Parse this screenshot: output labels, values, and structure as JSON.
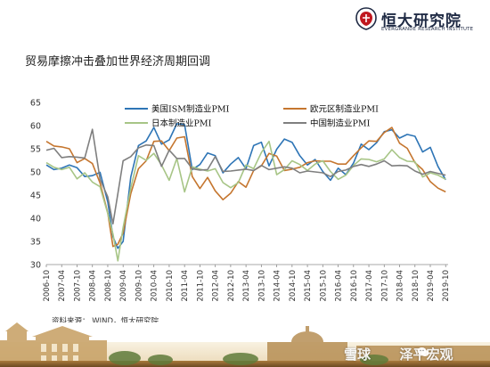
{
  "brand": {
    "cn_name": "恒大研究院",
    "en_name": "EVERGRANDE RESEARCH INSTITUTE",
    "color": "#c0181f"
  },
  "page": {
    "title": "贸易摩擦冲击叠加世界经济周期回调",
    "source": "资料来源： WIND，恒大研究院"
  },
  "watermark": {
    "left_text": "雪球",
    "right_text": "泽平宏观"
  },
  "chart_data": {
    "type": "line",
    "x_axis_unit": "year",
    "x_ticks": [
      "2006-10",
      "2007-04",
      "2007-10",
      "2008-04",
      "2008-10",
      "2009-04",
      "2009-10",
      "2010-04",
      "2010-10",
      "2011-04",
      "2011-10",
      "2012-04",
      "2012-10",
      "2013-04",
      "2013-10",
      "2014-04",
      "2014-10",
      "2015-04",
      "2015-10",
      "2016-04",
      "2016-10",
      "2017-04",
      "2017-10",
      "2018-04",
      "2018-10",
      "2019-04",
      "2019-10"
    ],
    "y_ticks": [
      30,
      35,
      40,
      45,
      50,
      55,
      60,
      65
    ],
    "ylim": [
      30,
      65
    ],
    "xlim": [
      2006.75,
      2019.83
    ],
    "grid": false,
    "legend_position": "top",
    "series": [
      {
        "name": "美国ISM制造业PMI",
        "color": "#2e75b6",
        "x": [
          2006.75,
          2007.0,
          2007.25,
          2007.5,
          2007.75,
          2008.0,
          2008.25,
          2008.5,
          2008.75,
          2008.92,
          2009.08,
          2009.25,
          2009.5,
          2009.75,
          2010.0,
          2010.25,
          2010.5,
          2010.75,
          2011.0,
          2011.25,
          2011.5,
          2011.75,
          2012.0,
          2012.25,
          2012.5,
          2012.75,
          2013.0,
          2013.25,
          2013.5,
          2013.75,
          2014.0,
          2014.25,
          2014.5,
          2014.75,
          2015.0,
          2015.25,
          2015.5,
          2015.75,
          2016.0,
          2016.25,
          2016.5,
          2016.75,
          2017.0,
          2017.25,
          2017.5,
          2017.75,
          2018.0,
          2018.25,
          2018.5,
          2018.75,
          2019.0,
          2019.25,
          2019.5,
          2019.75
        ],
        "values": [
          51.5,
          50.5,
          50.8,
          51.5,
          50.9,
          49.0,
          49.2,
          49.9,
          43.5,
          36.0,
          33.5,
          35.0,
          48.9,
          55.7,
          56.7,
          59.6,
          56.0,
          56.9,
          60.4,
          60.2,
          50.5,
          51.6,
          54.1,
          53.5,
          49.8,
          51.7,
          53.1,
          50.7,
          55.7,
          56.4,
          51.3,
          54.9,
          57.1,
          56.4,
          53.5,
          51.5,
          52.7,
          50.1,
          48.2,
          50.8,
          49.4,
          51.9,
          56.0,
          54.8,
          56.3,
          58.7,
          59.1,
          57.3,
          58.1,
          57.7,
          54.3,
          55.3,
          51.2,
          48.3
        ]
      },
      {
        "name": "欧元区制造业PMI",
        "color": "#c5762f",
        "x": [
          2006.75,
          2007.0,
          2007.25,
          2007.5,
          2007.75,
          2008.0,
          2008.25,
          2008.5,
          2008.75,
          2008.92,
          2009.08,
          2009.25,
          2009.5,
          2009.75,
          2010.0,
          2010.25,
          2010.5,
          2010.75,
          2011.0,
          2011.25,
          2011.5,
          2011.75,
          2012.0,
          2012.25,
          2012.5,
          2012.75,
          2013.0,
          2013.25,
          2013.5,
          2013.75,
          2014.0,
          2014.25,
          2014.5,
          2014.75,
          2015.0,
          2015.25,
          2015.5,
          2015.75,
          2016.0,
          2016.25,
          2016.5,
          2016.75,
          2017.0,
          2017.25,
          2017.5,
          2017.75,
          2018.0,
          2018.25,
          2018.5,
          2018.75,
          2019.0,
          2019.25,
          2019.5,
          2019.75
        ],
        "values": [
          56.6,
          55.6,
          55.4,
          55.0,
          52.0,
          52.9,
          51.8,
          47.6,
          41.1,
          33.9,
          34.4,
          36.8,
          45.3,
          50.7,
          52.4,
          56.6,
          56.7,
          54.6,
          57.3,
          57.6,
          49.0,
          46.4,
          48.8,
          45.9,
          44.0,
          45.4,
          47.9,
          46.7,
          50.3,
          51.3,
          54.0,
          53.4,
          50.3,
          50.6,
          51.0,
          52.0,
          52.4,
          52.3,
          52.3,
          51.7,
          51.7,
          53.5,
          55.2,
          56.7,
          56.6,
          58.5,
          59.6,
          56.2,
          55.1,
          52.0,
          50.5,
          47.9,
          46.5,
          45.7
        ]
      },
      {
        "name": "日本制造业PMI",
        "color": "#a7c586",
        "x": [
          2006.75,
          2007.0,
          2007.25,
          2007.5,
          2007.75,
          2008.0,
          2008.25,
          2008.5,
          2008.75,
          2008.92,
          2009.08,
          2009.25,
          2009.5,
          2009.75,
          2010.0,
          2010.25,
          2010.5,
          2010.75,
          2011.0,
          2011.25,
          2011.5,
          2011.75,
          2012.0,
          2012.25,
          2012.5,
          2012.75,
          2013.0,
          2013.25,
          2013.5,
          2013.75,
          2014.0,
          2014.25,
          2014.5,
          2014.75,
          2015.0,
          2015.25,
          2015.5,
          2015.75,
          2016.0,
          2016.25,
          2016.5,
          2016.75,
          2017.0,
          2017.25,
          2017.5,
          2017.75,
          2018.0,
          2018.25,
          2018.5,
          2018.75,
          2019.0,
          2019.25,
          2019.5,
          2019.75
        ],
        "values": [
          52.0,
          51.0,
          50.5,
          51.0,
          48.5,
          49.8,
          47.8,
          46.8,
          41.0,
          36.6,
          30.8,
          38.0,
          46.5,
          53.5,
          52.5,
          54.0,
          51.5,
          48.2,
          52.9,
          45.7,
          51.1,
          50.6,
          50.2,
          50.7,
          47.7,
          46.6,
          47.7,
          51.5,
          50.7,
          54.2,
          56.6,
          49.4,
          50.5,
          52.4,
          51.6,
          50.3,
          51.7,
          52.4,
          50.1,
          48.4,
          49.3,
          51.4,
          52.8,
          52.7,
          52.2,
          52.8,
          54.8,
          53.1,
          52.3,
          52.2,
          48.9,
          49.8,
          49.3,
          48.4
        ]
      },
      {
        "name": "中国制造业PMI",
        "color": "#7f7f7f",
        "x": [
          2006.75,
          2007.0,
          2007.25,
          2007.5,
          2007.75,
          2008.0,
          2008.25,
          2008.5,
          2008.75,
          2008.92,
          2009.08,
          2009.25,
          2009.5,
          2009.75,
          2010.0,
          2010.25,
          2010.5,
          2010.75,
          2011.0,
          2011.25,
          2011.5,
          2011.75,
          2012.0,
          2012.25,
          2012.5,
          2012.75,
          2013.0,
          2013.25,
          2013.5,
          2013.75,
          2014.0,
          2014.25,
          2014.5,
          2014.75,
          2015.0,
          2015.25,
          2015.5,
          2015.75,
          2016.0,
          2016.25,
          2016.5,
          2016.75,
          2017.0,
          2017.25,
          2017.5,
          2017.75,
          2018.0,
          2018.25,
          2018.5,
          2018.75,
          2019.0,
          2019.25,
          2019.5,
          2019.75
        ],
        "values": [
          54.7,
          55.1,
          53.1,
          53.3,
          53.2,
          53.0,
          59.2,
          48.4,
          44.6,
          38.8,
          45.3,
          52.4,
          53.3,
          55.2,
          55.8,
          55.7,
          51.2,
          54.7,
          52.9,
          52.9,
          50.7,
          50.4,
          50.5,
          53.3,
          50.1,
          50.2,
          50.4,
          50.6,
          50.3,
          51.4,
          50.5,
          50.8,
          51.1,
          50.8,
          49.8,
          50.2,
          50.0,
          49.8,
          49.0,
          50.1,
          50.4,
          51.2,
          51.6,
          51.2,
          51.7,
          52.4,
          51.3,
          51.4,
          51.3,
          50.2,
          49.5,
          50.1,
          49.7,
          49.3
        ]
      }
    ]
  }
}
